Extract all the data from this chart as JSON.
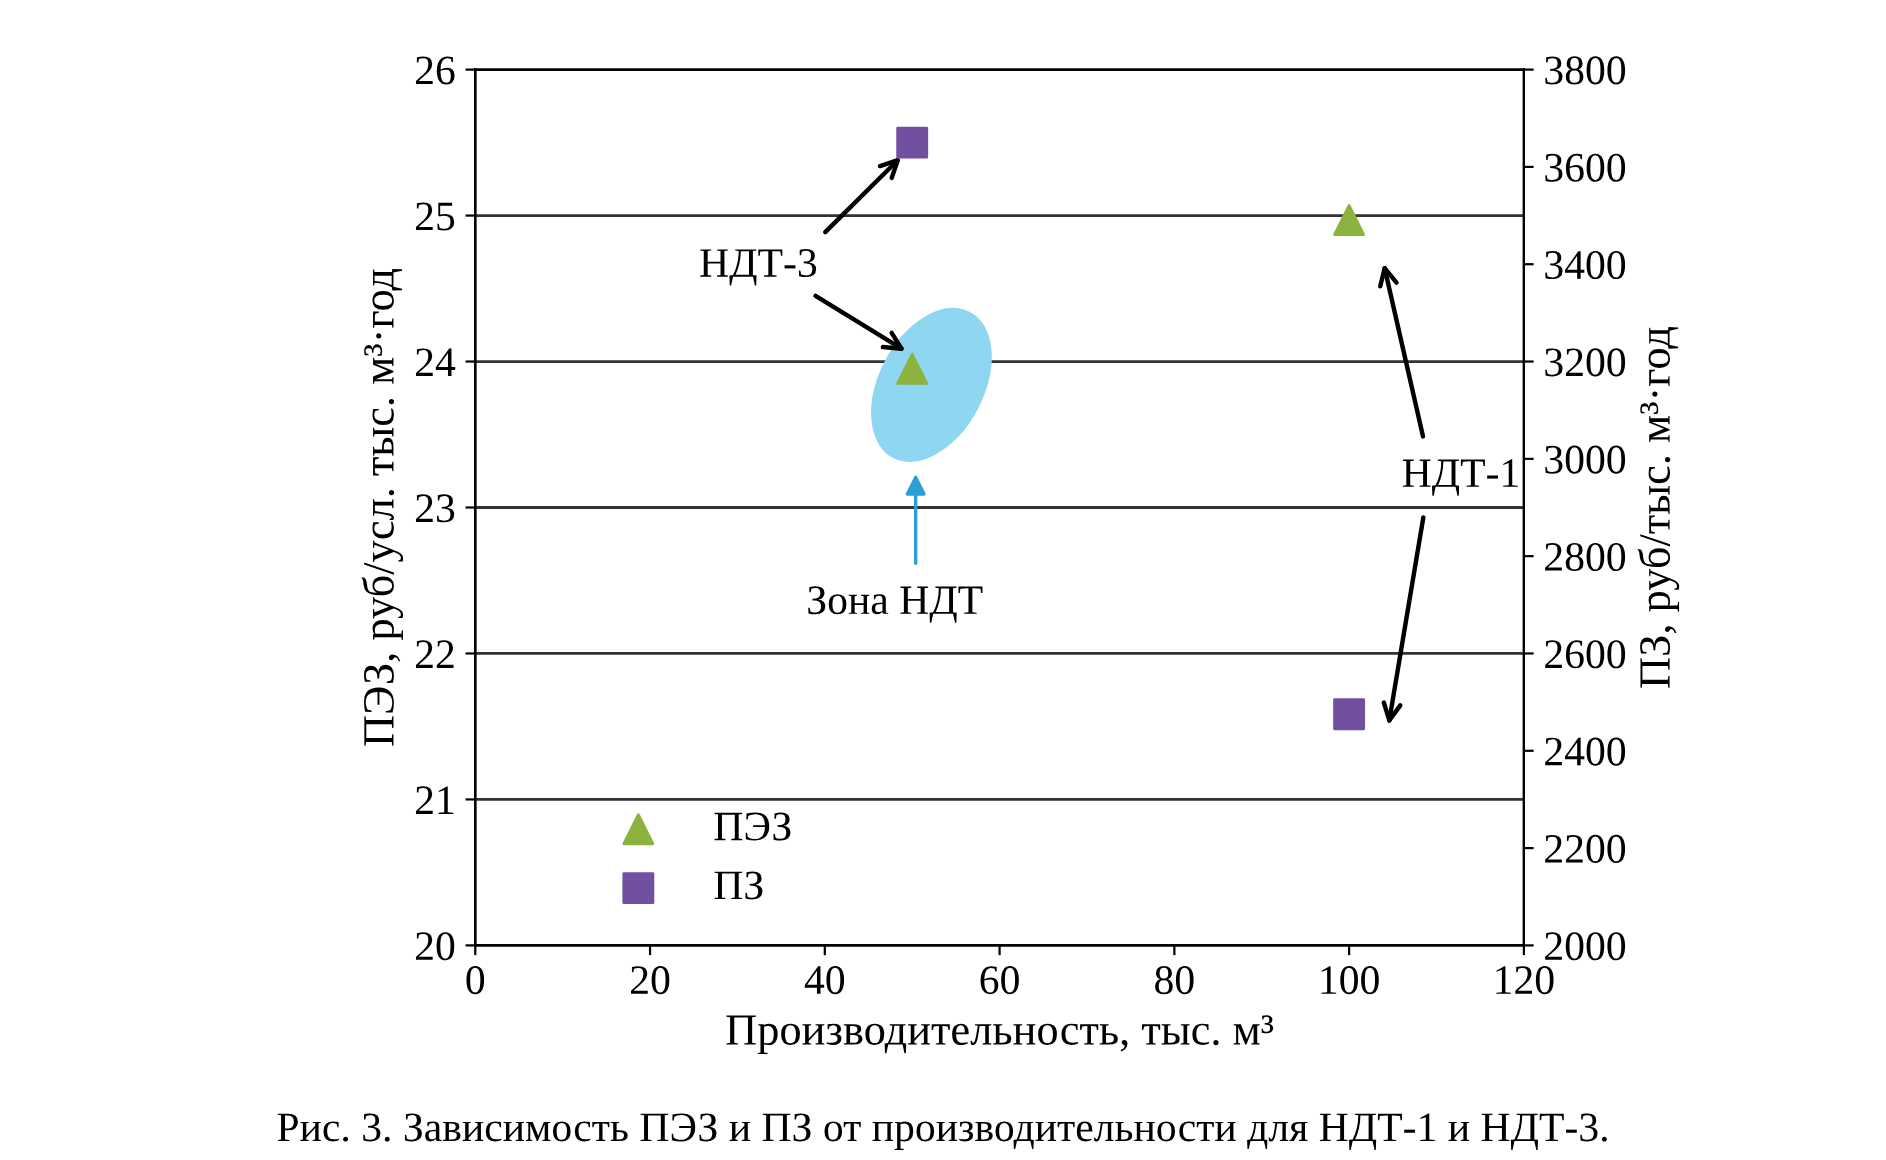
{
  "chart_data": {
    "type": "scatter",
    "x": [
      50,
      100
    ],
    "series": [
      {
        "name": "ПЭЗ",
        "color": "#8db33f",
        "marker": "triangle",
        "values": [
          23.95,
          24.97
        ]
      },
      {
        "name": "ПЗ",
        "color": "#7150a0",
        "marker": "square",
        "axis": "y2",
        "values": [
          3650,
          2475
        ]
      }
    ],
    "xlabel": "Производительность, тыс. м³",
    "ylabel": "ПЭЗ, руб/усл. тыс. м³·год",
    "y2label": "ПЗ, руб/тыс. м³·год",
    "xlim": [
      0,
      120
    ],
    "xticks": [
      0,
      20,
      40,
      60,
      80,
      100,
      120
    ],
    "ylim": [
      20,
      26
    ],
    "yticks": [
      20,
      21,
      22,
      23,
      24,
      25,
      26
    ],
    "y2lim": [
      2000,
      3800
    ],
    "y2ticks": [
      2000,
      2200,
      2400,
      2600,
      2800,
      3000,
      3200,
      3400,
      3600,
      3800
    ],
    "grid": "y",
    "legend": "bottom left",
    "annotations": [
      "НДТ-3",
      "НДТ-1",
      "Зона НДТ",
      "Рис. 3. Зависимость ПЭЗ и ПЗ от производительности для НДТ-1 и НДТ-3."
    ]
  }
}
